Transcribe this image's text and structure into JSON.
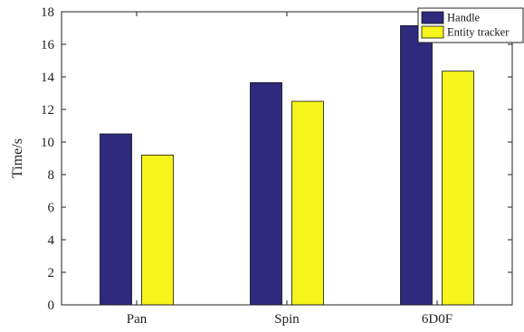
{
  "chart_data": {
    "type": "bar",
    "title": "",
    "xlabel": "",
    "ylabel": "Time/s",
    "ylim": [
      0,
      18
    ],
    "yticks": [
      0,
      2,
      4,
      6,
      8,
      10,
      12,
      14,
      16,
      18
    ],
    "categories": [
      "Pan",
      "Spin",
      "6D0F"
    ],
    "series": [
      {
        "name": "Handle",
        "color": "#2e2a7e",
        "values": [
          10.5,
          13.65,
          17.15
        ]
      },
      {
        "name": "Entity tracker",
        "color": "#f5f51c",
        "values": [
          9.2,
          12.5,
          14.35
        ]
      }
    ],
    "grid": false,
    "legend_position": "top-right"
  }
}
